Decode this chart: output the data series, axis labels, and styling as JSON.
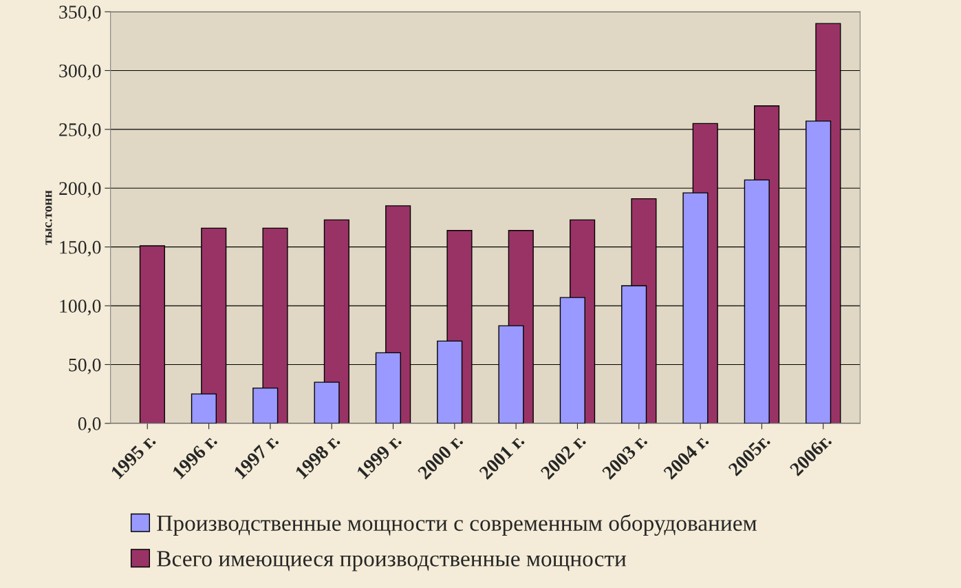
{
  "chart_data": {
    "type": "bar",
    "ylabel": "тыс.тонн",
    "categories": [
      "1995 г.",
      "1996 г.",
      "1997 г.",
      "1998 г.",
      "1999 г.",
      "2000 г.",
      "2001 г.",
      "2002 г.",
      "2003 г.",
      "2004 г.",
      "2005г.",
      "2006г."
    ],
    "series": [
      {
        "name": "Производственные мощности с современным оборудованием",
        "color": "#9999ff",
        "values": [
          0,
          25,
          30,
          35,
          60,
          70,
          83,
          107,
          117,
          196,
          207,
          257
        ]
      },
      {
        "name": "Всего имеющиеся производственные мощности",
        "color": "#993366",
        "values": [
          151,
          166,
          166,
          173,
          185,
          164,
          164,
          173,
          191,
          255,
          270,
          340
        ]
      }
    ],
    "ylim": [
      0,
      350
    ],
    "yticks": [
      {
        "value": 0,
        "label": "0,0"
      },
      {
        "value": 50,
        "label": "50,0"
      },
      {
        "value": 100,
        "label": "100,0"
      },
      {
        "value": 150,
        "label": "150,0"
      },
      {
        "value": 200,
        "label": "200,0"
      },
      {
        "value": 250,
        "label": "250,0"
      },
      {
        "value": 300,
        "label": "300,0"
      },
      {
        "value": 350,
        "label": "350,0"
      }
    ],
    "grid": "y",
    "legend": "bottom"
  }
}
